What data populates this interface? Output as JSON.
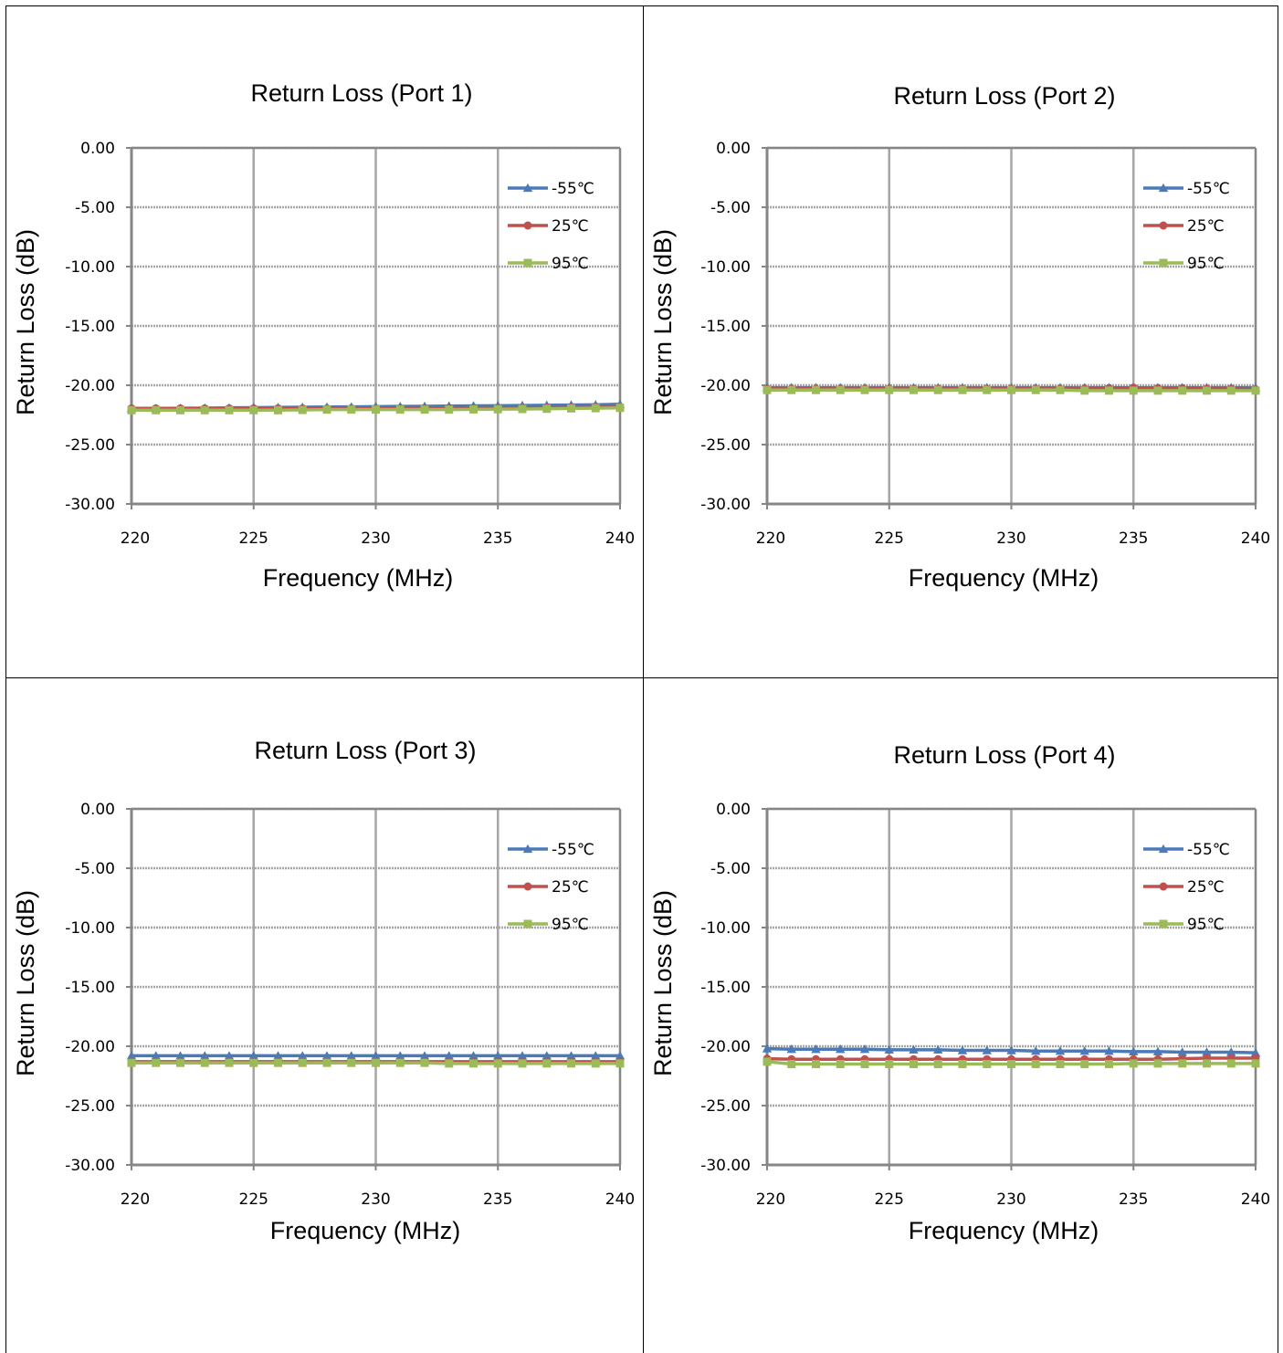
{
  "colors": {
    "-55": "#4a7ab8",
    "25": "#c0504d",
    "95": "#9bbb59",
    "grid": "#a6a6a6",
    "axis": "#868686"
  },
  "chart_data": [
    {
      "type": "line",
      "title": "Return Loss (Port 1)",
      "xlabel": "Frequency (MHz)",
      "ylabel": "Return Loss (dB)",
      "xlim": [
        220,
        240
      ],
      "ylim": [
        -30,
        0
      ],
      "xticks": [
        "220",
        "225",
        "230",
        "235",
        "240"
      ],
      "yticks": [
        "0.00",
        "-5.00",
        "-10.00",
        "-15.00",
        "-20.00",
        "-25.00",
        "-30.00"
      ],
      "grid": true,
      "legend": "top-right",
      "x": [
        220,
        221,
        222,
        223,
        224,
        225,
        226,
        227,
        228,
        229,
        230,
        231,
        232,
        233,
        234,
        235,
        236,
        237,
        238,
        239,
        240
      ],
      "series": [
        {
          "name": "-55℃",
          "values": [
            -21.95,
            -21.95,
            -21.93,
            -21.92,
            -21.9,
            -21.88,
            -21.87,
            -21.85,
            -21.83,
            -21.82,
            -21.8,
            -21.78,
            -21.77,
            -21.75,
            -21.73,
            -21.72,
            -21.7,
            -21.68,
            -21.66,
            -21.64,
            -21.6
          ]
        },
        {
          "name": "25℃",
          "values": [
            -21.95,
            -21.95,
            -21.95,
            -21.95,
            -21.95,
            -21.95,
            -21.95,
            -21.95,
            -21.95,
            -21.95,
            -21.95,
            -21.95,
            -21.95,
            -21.93,
            -21.93,
            -21.92,
            -21.9,
            -21.88,
            -21.87,
            -21.85,
            -21.85
          ]
        },
        {
          "name": "95℃",
          "values": [
            -22.1,
            -22.1,
            -22.1,
            -22.1,
            -22.1,
            -22.1,
            -22.1,
            -22.08,
            -22.05,
            -22.05,
            -22.05,
            -22.05,
            -22.05,
            -22.05,
            -22.03,
            -22.02,
            -22.0,
            -21.98,
            -21.95,
            -21.93,
            -21.9
          ]
        }
      ]
    },
    {
      "type": "line",
      "title": "Return Loss (Port 2)",
      "xlabel": "Frequency (MHz)",
      "ylabel": "Return Loss (dB)",
      "xlim": [
        220,
        240
      ],
      "ylim": [
        -30,
        0
      ],
      "xticks": [
        "220",
        "225",
        "230",
        "235",
        "240"
      ],
      "yticks": [
        "0.00",
        "-5.00",
        "-10.00",
        "-15.00",
        "-20.00",
        "-25.00",
        "-30.00"
      ],
      "grid": true,
      "legend": "top-right",
      "x": [
        220,
        221,
        222,
        223,
        224,
        225,
        226,
        227,
        228,
        229,
        230,
        231,
        232,
        233,
        234,
        235,
        236,
        237,
        238,
        239,
        240
      ],
      "series": [
        {
          "name": "-55℃",
          "values": [
            -20.2,
            -20.2,
            -20.2,
            -20.2,
            -20.2,
            -20.2,
            -20.2,
            -20.2,
            -20.2,
            -20.2,
            -20.2,
            -20.2,
            -20.2,
            -20.2,
            -20.2,
            -20.2,
            -20.2,
            -20.2,
            -20.2,
            -20.2,
            -20.2
          ]
        },
        {
          "name": "25℃",
          "values": [
            -20.3,
            -20.3,
            -20.3,
            -20.3,
            -20.3,
            -20.3,
            -20.3,
            -20.3,
            -20.3,
            -20.3,
            -20.3,
            -20.3,
            -20.3,
            -20.3,
            -20.25,
            -20.2,
            -20.25,
            -20.25,
            -20.3,
            -20.3,
            -20.35
          ]
        },
        {
          "name": "95℃",
          "values": [
            -20.4,
            -20.4,
            -20.4,
            -20.4,
            -20.4,
            -20.4,
            -20.4,
            -20.4,
            -20.4,
            -20.4,
            -20.4,
            -20.4,
            -20.4,
            -20.45,
            -20.45,
            -20.45,
            -20.45,
            -20.45,
            -20.45,
            -20.45,
            -20.45
          ]
        }
      ]
    },
    {
      "type": "line",
      "title": "Return Loss (Port 3)",
      "xlabel": "Frequency (MHz)",
      "ylabel": "Return Loss (dB)",
      "xlim": [
        220,
        240
      ],
      "ylim": [
        -30,
        0
      ],
      "xticks": [
        "220",
        "225",
        "230",
        "235",
        "240"
      ],
      "yticks": [
        "0.00",
        "-5.00",
        "-10.00",
        "-15.00",
        "-20.00",
        "-25.00",
        "-30.00"
      ],
      "grid": true,
      "legend": "top-right",
      "x": [
        220,
        221,
        222,
        223,
        224,
        225,
        226,
        227,
        228,
        229,
        230,
        231,
        232,
        233,
        234,
        235,
        236,
        237,
        238,
        239,
        240
      ],
      "series": [
        {
          "name": "-55℃",
          "values": [
            -20.8,
            -20.8,
            -20.8,
            -20.8,
            -20.8,
            -20.8,
            -20.8,
            -20.8,
            -20.8,
            -20.8,
            -20.8,
            -20.8,
            -20.8,
            -20.8,
            -20.8,
            -20.8,
            -20.8,
            -20.8,
            -20.8,
            -20.8,
            -20.8
          ]
        },
        {
          "name": "25℃",
          "values": [
            -21.3,
            -21.3,
            -21.3,
            -21.3,
            -21.3,
            -21.3,
            -21.3,
            -21.3,
            -21.3,
            -21.3,
            -21.3,
            -21.3,
            -21.3,
            -21.3,
            -21.3,
            -21.3,
            -21.3,
            -21.3,
            -21.3,
            -21.3,
            -21.3
          ]
        },
        {
          "name": "95℃",
          "values": [
            -21.4,
            -21.4,
            -21.4,
            -21.4,
            -21.4,
            -21.4,
            -21.4,
            -21.4,
            -21.4,
            -21.4,
            -21.4,
            -21.4,
            -21.4,
            -21.45,
            -21.45,
            -21.45,
            -21.45,
            -21.45,
            -21.45,
            -21.45,
            -21.45
          ]
        }
      ]
    },
    {
      "type": "line",
      "title": "Return Loss (Port 4)",
      "xlabel": "Frequency (MHz)",
      "ylabel": "Return Loss (dB)",
      "xlim": [
        220,
        240
      ],
      "ylim": [
        -30,
        0
      ],
      "xticks": [
        "220",
        "225",
        "230",
        "235",
        "240"
      ],
      "yticks": [
        "0.00",
        "-5.00",
        "-10.00",
        "-15.00",
        "-20.00",
        "-25.00",
        "-30.00"
      ],
      "grid": true,
      "legend": "top-right",
      "x": [
        220,
        221,
        222,
        223,
        224,
        225,
        226,
        227,
        228,
        229,
        230,
        231,
        232,
        233,
        234,
        235,
        236,
        237,
        238,
        239,
        240
      ],
      "series": [
        {
          "name": "-55℃",
          "values": [
            -20.2,
            -20.25,
            -20.25,
            -20.25,
            -20.25,
            -20.3,
            -20.3,
            -20.3,
            -20.35,
            -20.35,
            -20.35,
            -20.4,
            -20.4,
            -20.4,
            -20.4,
            -20.45,
            -20.45,
            -20.5,
            -20.5,
            -20.5,
            -20.55
          ]
        },
        {
          "name": "25℃",
          "values": [
            -21.05,
            -21.1,
            -21.1,
            -21.1,
            -21.1,
            -21.1,
            -21.1,
            -21.1,
            -21.1,
            -21.1,
            -21.1,
            -21.1,
            -21.1,
            -21.1,
            -21.1,
            -21.1,
            -21.1,
            -21.05,
            -21.0,
            -21.0,
            -21.0
          ]
        },
        {
          "name": "95℃",
          "values": [
            -21.3,
            -21.5,
            -21.5,
            -21.5,
            -21.5,
            -21.5,
            -21.5,
            -21.5,
            -21.5,
            -21.5,
            -21.5,
            -21.5,
            -21.5,
            -21.5,
            -21.5,
            -21.45,
            -21.45,
            -21.45,
            -21.45,
            -21.45,
            -21.45
          ]
        }
      ]
    }
  ]
}
